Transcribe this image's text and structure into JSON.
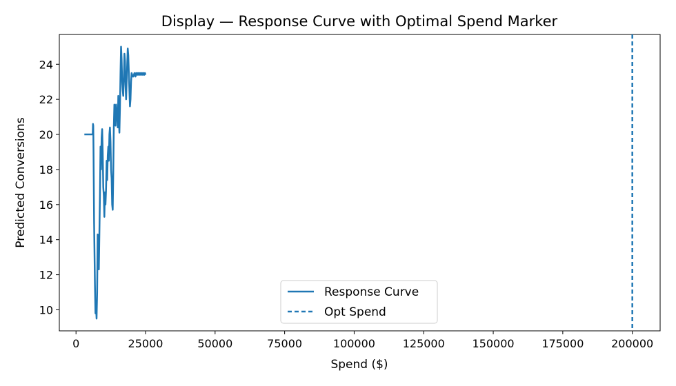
{
  "chart_data": {
    "type": "line",
    "title": "Display — Response Curve with Optimal Spend Marker",
    "xlabel": "Spend ($)",
    "ylabel": "Predicted Conversions",
    "xlim": [
      -6000,
      210000
    ],
    "ylim": [
      8.8,
      25.7
    ],
    "x_ticks": [
      0,
      25000,
      50000,
      75000,
      100000,
      125000,
      150000,
      175000,
      200000
    ],
    "y_ticks": [
      10,
      12,
      14,
      16,
      18,
      20,
      22,
      24
    ],
    "grid": false,
    "legend_position": "lower-center",
    "series": [
      {
        "name": "Response Curve",
        "style": "solid",
        "color": "#1f77b4",
        "x": [
          3000,
          6000,
          6100,
          6200,
          6300,
          6500,
          6800,
          7000,
          7200,
          7400,
          7600,
          7800,
          8000,
          8200,
          8400,
          8600,
          8800,
          9000,
          9200,
          9400,
          9600,
          9800,
          10000,
          10200,
          10400,
          10600,
          10800,
          11000,
          11200,
          11400,
          11600,
          11800,
          12000,
          12200,
          12400,
          12600,
          12800,
          13000,
          13200,
          13400,
          13600,
          13800,
          14000,
          14200,
          14400,
          14600,
          14800,
          15000,
          15200,
          15400,
          15600,
          15800,
          16000,
          16200,
          16400,
          16600,
          16800,
          17000,
          17200,
          17400,
          17600,
          17800,
          18000,
          18200,
          18400,
          18600,
          18800,
          19000,
          19200,
          19400,
          19600,
          19800,
          20000,
          20200,
          20400,
          20600,
          20800,
          21000,
          21200,
          21400,
          21600,
          21800,
          22000,
          22200,
          22400,
          22600,
          22800,
          23000,
          23200,
          23400,
          23600,
          23800,
          24000,
          24200,
          24400,
          24600,
          24800,
          25000
        ],
        "y": [
          20.0,
          20.0,
          20.6,
          20.5,
          19.0,
          15.0,
          11.5,
          9.8,
          10.2,
          9.5,
          11.0,
          14.3,
          13.0,
          12.3,
          14.4,
          16.5,
          19.3,
          18.0,
          19.8,
          20.3,
          19.0,
          17.0,
          16.5,
          15.3,
          16.7,
          16.0,
          16.8,
          18.5,
          17.4,
          18.8,
          19.3,
          18.5,
          20.0,
          20.4,
          19.6,
          18.0,
          17.5,
          16.0,
          15.7,
          17.8,
          20.4,
          21.7,
          21.0,
          20.5,
          21.7,
          21.3,
          21.0,
          20.4,
          22.2,
          20.8,
          20.1,
          21.5,
          23.5,
          25.0,
          24.3,
          23.0,
          22.5,
          22.2,
          23.3,
          24.6,
          24.2,
          22.8,
          22.0,
          23.0,
          24.0,
          24.9,
          24.5,
          23.5,
          22.5,
          21.6,
          22.0,
          23.0,
          23.5,
          23.4,
          23.3,
          23.3,
          23.4,
          23.5,
          23.4,
          23.3,
          23.5,
          23.4,
          23.5,
          23.4,
          23.5,
          23.4,
          23.5,
          23.4,
          23.5,
          23.4,
          23.5,
          23.4,
          23.5,
          23.4,
          23.5,
          23.4,
          23.5,
          23.4
        ]
      },
      {
        "name": "Opt Spend",
        "style": "dashed",
        "color": "#1f77b4",
        "vline_x": 200000
      }
    ]
  }
}
